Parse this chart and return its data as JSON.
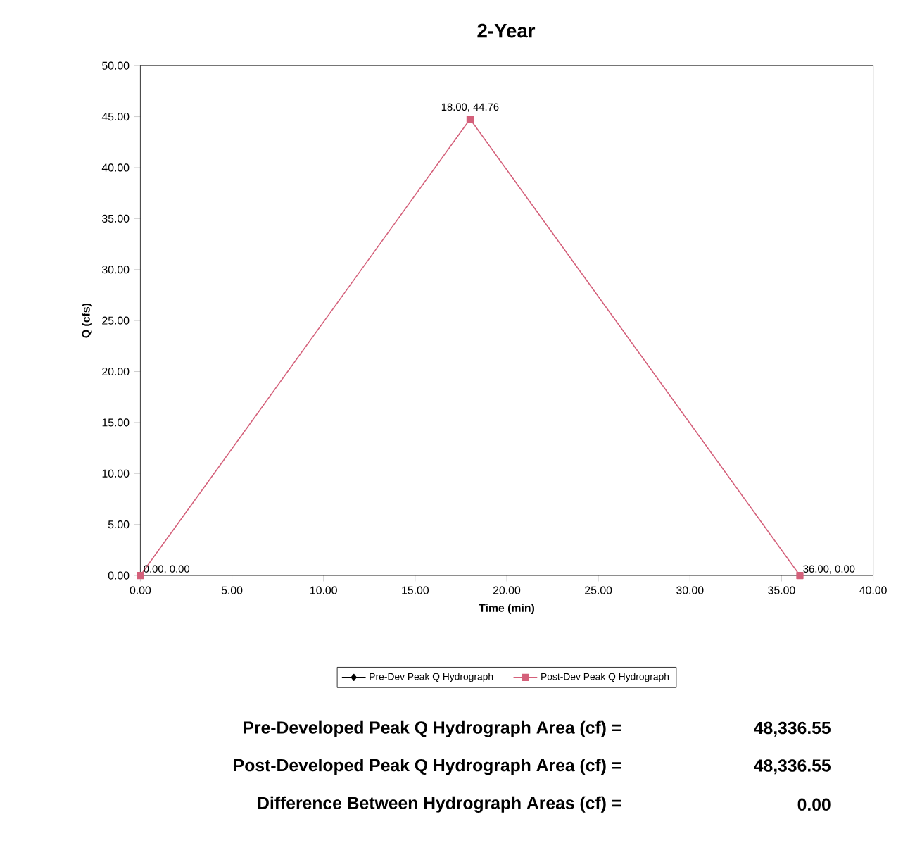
{
  "chart_data": {
    "type": "line",
    "title": "2-Year",
    "xlabel": "Time (min)",
    "ylabel": "Q (cfs)",
    "x": [
      0,
      18,
      36
    ],
    "series": [
      {
        "name": "Pre-Dev Peak Q Hydrograph",
        "color": "#000000",
        "marker": "diamond",
        "values": [
          null,
          null,
          null
        ]
      },
      {
        "name": "Post-Dev Peak Q Hydrograph",
        "color": "#d4607a",
        "marker": "square",
        "values": [
          0,
          44.76,
          0
        ],
        "value_labels": [
          "0.00, 0.00",
          "18.00, 44.76",
          "36.00, 0.00"
        ]
      }
    ],
    "xlim": [
      0,
      40
    ],
    "xticks": [
      {
        "value": 0,
        "label": "0.00"
      },
      {
        "value": 5,
        "label": "5.00"
      },
      {
        "value": 10,
        "label": "10.00"
      },
      {
        "value": 15,
        "label": "15.00"
      },
      {
        "value": 20,
        "label": "20.00"
      },
      {
        "value": 25,
        "label": "25.00"
      },
      {
        "value": 30,
        "label": "30.00"
      },
      {
        "value": 35,
        "label": "35.00"
      },
      {
        "value": 40,
        "label": "40.00"
      }
    ],
    "ylim": [
      0,
      50
    ],
    "yticks": [
      {
        "value": 0,
        "label": "0.00"
      },
      {
        "value": 5,
        "label": "5.00"
      },
      {
        "value": 10,
        "label": "10.00"
      },
      {
        "value": 15,
        "label": "15.00"
      },
      {
        "value": 20,
        "label": "20.00"
      },
      {
        "value": 25,
        "label": "25.00"
      },
      {
        "value": 30,
        "label": "30.00"
      },
      {
        "value": 35,
        "label": "35.00"
      },
      {
        "value": 40,
        "label": "40.00"
      },
      {
        "value": 45,
        "label": "45.00"
      },
      {
        "value": 50,
        "label": "50.00"
      }
    ],
    "grid": false,
    "legend": "bottom",
    "annotations": [
      "Pre-Developed Peak Q Hydrograph Area (cf) =",
      "48,336.55",
      "Post-Developed Peak Q Hydrograph Area (cf) =",
      "48,336.55",
      "Difference Between Hydrograph Areas (cf) =",
      "0.00"
    ]
  }
}
